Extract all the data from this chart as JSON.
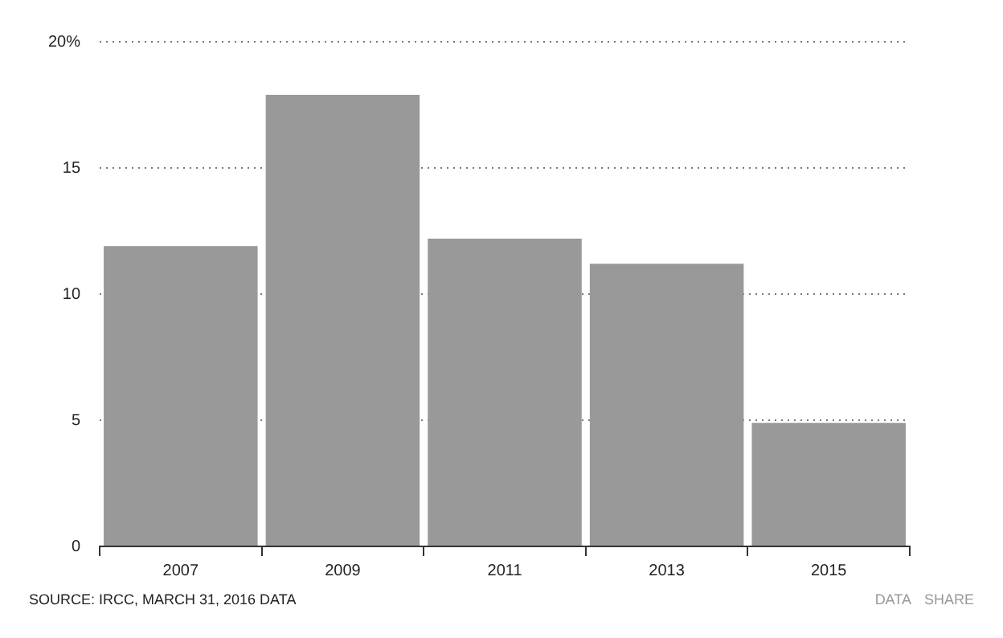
{
  "chart_data": {
    "type": "bar",
    "categories": [
      "2007",
      "2009",
      "2011",
      "2013",
      "2015"
    ],
    "values": [
      11.9,
      17.9,
      12.2,
      11.2,
      4.9
    ],
    "color": "#999999",
    "ylim": [
      0,
      20
    ],
    "yticks": [
      0,
      5,
      10,
      15,
      {
        "value": 20,
        "label": "20%"
      }
    ],
    "grid": "y",
    "legend": false,
    "annotations": [
      "SOURCE: IRCC, MARCH 31, 2016 DATA",
      "DATA",
      "SHARE"
    ]
  }
}
